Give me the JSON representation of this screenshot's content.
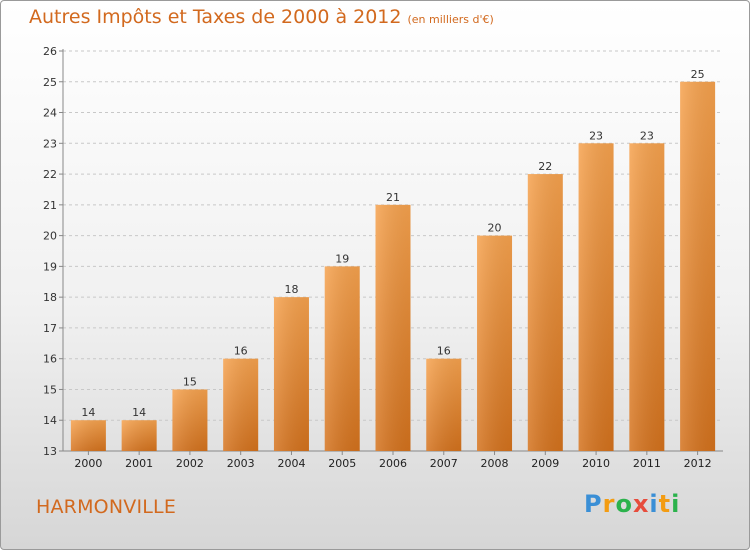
{
  "title": {
    "main": "Autres Impôts et Taxes de 2000 à 2012",
    "unit": "(en milliers d'€)"
  },
  "footer": {
    "commune": "HARMONVILLE",
    "logo": [
      {
        "ch": "P",
        "color": "#3a8fd6"
      },
      {
        "ch": "r",
        "color": "#f39c12"
      },
      {
        "ch": "o",
        "color": "#2bb24c"
      },
      {
        "ch": "x",
        "color": "#e74c3c"
      },
      {
        "ch": "i",
        "color": "#3a8fd6"
      },
      {
        "ch": "t",
        "color": "#f39c12"
      },
      {
        "ch": "i",
        "color": "#2bb24c"
      }
    ]
  },
  "chart_data": {
    "type": "bar",
    "categories": [
      "2000",
      "2001",
      "2002",
      "2003",
      "2004",
      "2005",
      "2006",
      "2007",
      "2008",
      "2009",
      "2010",
      "2011",
      "2012"
    ],
    "values": [
      14,
      14,
      15,
      16,
      18,
      19,
      21,
      16,
      20,
      22,
      23,
      23,
      25
    ],
    "ylim": [
      13,
      26
    ],
    "yticks": [
      13,
      14,
      15,
      16,
      17,
      18,
      19,
      20,
      21,
      22,
      23,
      24,
      25,
      26
    ],
    "grid": "horizontal-dashed",
    "bar_color_top": "#f6a24e",
    "bar_color_bottom": "#d4721d",
    "xlabel": "",
    "ylabel": ""
  }
}
